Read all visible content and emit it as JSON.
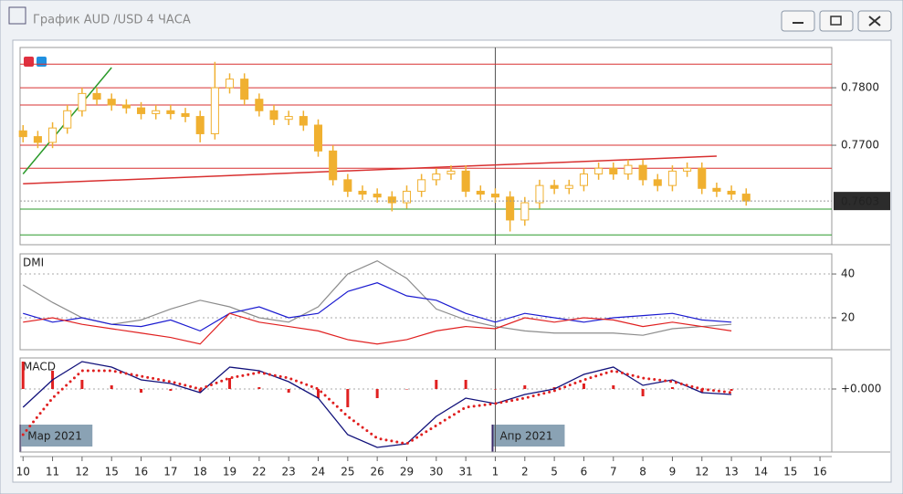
{
  "window_title": "График AUD /USD  4 ЧАСА",
  "chart_data": [
    {
      "type": "candlestick",
      "x": [
        0,
        0.5,
        1,
        1.5,
        2,
        2.5,
        3,
        3.5,
        4,
        4.5,
        5,
        5.5,
        6,
        6.5,
        7,
        7.5,
        8,
        8.5,
        9,
        9.5,
        10,
        10.5,
        11,
        11.5,
        12,
        12.5,
        13,
        13.5,
        14,
        14.5,
        15,
        15.5,
        16,
        16.5,
        17,
        17.5,
        18,
        18.5,
        19,
        19.5,
        20,
        20.5,
        21,
        21.5,
        22,
        22.5,
        23,
        23.5,
        24,
        24.5
      ],
      "open": [
        0.7725,
        0.7715,
        0.7705,
        0.773,
        0.776,
        0.779,
        0.778,
        0.777,
        0.7765,
        0.7755,
        0.776,
        0.7755,
        0.775,
        0.772,
        0.78,
        0.7815,
        0.778,
        0.776,
        0.7745,
        0.775,
        0.7735,
        0.769,
        0.764,
        0.762,
        0.7615,
        0.761,
        0.76,
        0.762,
        0.764,
        0.765,
        0.7655,
        0.762,
        0.7615,
        0.761,
        0.757,
        0.76,
        0.763,
        0.7625,
        0.763,
        0.765,
        0.766,
        0.765,
        0.7665,
        0.764,
        0.763,
        0.7655,
        0.766,
        0.7625,
        0.762,
        0.7615
      ],
      "high": [
        0.7735,
        0.7725,
        0.774,
        0.777,
        0.78,
        0.78,
        0.779,
        0.778,
        0.7775,
        0.777,
        0.777,
        0.7765,
        0.776,
        0.7845,
        0.7825,
        0.7825,
        0.779,
        0.777,
        0.776,
        0.776,
        0.7745,
        0.77,
        0.765,
        0.763,
        0.7625,
        0.762,
        0.763,
        0.765,
        0.766,
        0.7665,
        0.7665,
        0.763,
        0.7625,
        0.762,
        0.761,
        0.764,
        0.764,
        0.764,
        0.766,
        0.767,
        0.767,
        0.7675,
        0.7675,
        0.765,
        0.7665,
        0.767,
        0.767,
        0.7635,
        0.763,
        0.7625
      ],
      "low": [
        0.7705,
        0.7695,
        0.7695,
        0.772,
        0.775,
        0.777,
        0.776,
        0.7755,
        0.7745,
        0.7745,
        0.7745,
        0.774,
        0.7705,
        0.771,
        0.779,
        0.777,
        0.775,
        0.7735,
        0.7735,
        0.7725,
        0.768,
        0.763,
        0.761,
        0.7605,
        0.76,
        0.7585,
        0.759,
        0.761,
        0.763,
        0.764,
        0.761,
        0.7605,
        0.76,
        0.755,
        0.756,
        0.759,
        0.7615,
        0.7615,
        0.762,
        0.764,
        0.764,
        0.764,
        0.763,
        0.762,
        0.762,
        0.7645,
        0.7615,
        0.761,
        0.7605,
        0.7595
      ],
      "close": [
        0.7715,
        0.7705,
        0.773,
        0.776,
        0.779,
        0.778,
        0.777,
        0.7765,
        0.7755,
        0.776,
        0.7755,
        0.775,
        0.772,
        0.78,
        0.7815,
        0.778,
        0.776,
        0.7745,
        0.775,
        0.7735,
        0.769,
        0.764,
        0.762,
        0.7615,
        0.761,
        0.76,
        0.762,
        0.764,
        0.765,
        0.7655,
        0.762,
        0.7615,
        0.761,
        0.757,
        0.76,
        0.763,
        0.7625,
        0.763,
        0.765,
        0.766,
        0.765,
        0.7665,
        0.764,
        0.763,
        0.7655,
        0.766,
        0.7625,
        0.762,
        0.7615,
        0.7603
      ],
      "color": "#f0b030",
      "last_price": 0.7603,
      "hlines": [
        {
          "value": 0.7841,
          "color": "#d83030"
        },
        {
          "value": 0.78,
          "color": "#d83030"
        },
        {
          "value": 0.777,
          "color": "#d83030"
        },
        {
          "value": 0.77,
          "color": "#d83030"
        },
        {
          "value": 0.766,
          "color": "#d83030"
        },
        {
          "value": 0.7589,
          "color": "#2a9a2a"
        },
        {
          "value": 0.7544,
          "color": "#2a9a2a"
        }
      ],
      "trendlines": [
        {
          "x": [
            0,
            3
          ],
          "y": [
            0.765,
            0.7835
          ],
          "color": "#2a9a2a"
        },
        {
          "x": [
            0,
            23.5
          ],
          "y": [
            0.7633,
            0.7681
          ],
          "color": "#d83030"
        }
      ],
      "xlim": [
        -0.1,
        27.4
      ],
      "ylim": [
        0.7527,
        0.787
      ],
      "yticks": [
        {
          "value": 0.77,
          "label": "0.7700"
        },
        {
          "value": 0.78,
          "label": "0.7800"
        }
      ],
      "xticks": [
        {
          "value": 0,
          "label": "10"
        },
        {
          "value": 1,
          "label": "11"
        },
        {
          "value": 2,
          "label": "12"
        },
        {
          "value": 3,
          "label": "15"
        },
        {
          "value": 4,
          "label": "16"
        },
        {
          "value": 5,
          "label": "17"
        },
        {
          "value": 6,
          "label": "18"
        },
        {
          "value": 7,
          "label": "19"
        },
        {
          "value": 8,
          "label": "22"
        },
        {
          "value": 9,
          "label": "23"
        },
        {
          "value": 10,
          "label": "24"
        },
        {
          "value": 11,
          "label": "25"
        },
        {
          "value": 12,
          "label": "26"
        },
        {
          "value": 13,
          "label": "29"
        },
        {
          "value": 14,
          "label": "30"
        },
        {
          "value": 15,
          "label": "31"
        },
        {
          "value": 16,
          "label": "1"
        },
        {
          "value": 17,
          "label": "2"
        },
        {
          "value": 18,
          "label": "5"
        },
        {
          "value": 19,
          "label": "6"
        },
        {
          "value": 20,
          "label": "7"
        },
        {
          "value": 21,
          "label": "8"
        },
        {
          "value": 22,
          "label": "9"
        },
        {
          "value": 23,
          "label": "12"
        },
        {
          "value": 24,
          "label": "13"
        },
        {
          "value": 25,
          "label": "14"
        },
        {
          "value": 26,
          "label": "15"
        },
        {
          "value": 27,
          "label": "16"
        }
      ],
      "period_markers": [
        {
          "x": 0,
          "label": "Мар 2021"
        },
        {
          "x": 16,
          "label": "Апр 2021"
        }
      ]
    },
    {
      "type": "line",
      "title": "DMI",
      "x": [
        0,
        1,
        2,
        3,
        4,
        5,
        6,
        7,
        8,
        9,
        10,
        11,
        12,
        13,
        14,
        15,
        16,
        17,
        18,
        19,
        20,
        21,
        22,
        23,
        24
      ],
      "series": [
        {
          "color": "#8c8c8c",
          "values": [
            35,
            27,
            20,
            17,
            19,
            24,
            28,
            25,
            20,
            18,
            25,
            40,
            46,
            38,
            24,
            19,
            16,
            14,
            13,
            13,
            13,
            12,
            15,
            16,
            17
          ]
        },
        {
          "color": "#1a1ad0",
          "values": [
            22,
            18,
            20,
            17,
            16,
            19,
            14,
            22,
            25,
            20,
            22,
            32,
            36,
            30,
            28,
            22,
            18,
            22,
            20,
            18,
            20,
            21,
            22,
            19,
            18
          ]
        },
        {
          "color": "#e02020",
          "values": [
            18,
            20,
            17,
            15,
            13,
            11,
            8,
            22,
            18,
            16,
            14,
            10,
            8,
            10,
            14,
            16,
            15,
            20,
            18,
            20,
            19,
            16,
            18,
            16,
            14
          ]
        }
      ],
      "xlim": [
        -0.1,
        27.4
      ],
      "ylim": [
        5.4,
        49.2
      ],
      "yticks": [
        20,
        40
      ],
      "grid": true
    },
    {
      "type": "macd",
      "title": "MACD",
      "x": [
        0,
        1,
        2,
        3,
        4,
        5,
        6,
        7,
        8,
        9,
        10,
        11,
        12,
        13,
        14,
        15,
        16,
        17,
        18,
        19,
        20,
        21,
        22,
        23,
        24
      ],
      "series": [
        {
          "style": "histogram",
          "color": "#e02020",
          "values": [
            0.0015,
            0.001,
            0.0005,
            0.0002,
            -0.0002,
            -0.0001,
            -0.0002,
            0.0006,
            0.0001,
            -0.0002,
            -0.0005,
            -0.001,
            -0.0005,
            0.0,
            0.0005,
            0.0005,
            0.0,
            0.0002,
            0.0001,
            0.0003,
            0.0002,
            -0.0004,
            0.0001,
            -0.0002,
            -0.0001
          ]
        },
        {
          "style": "line",
          "color": "#10107a",
          "values": [
            -0.001,
            0.0005,
            0.0015,
            0.0012,
            0.0005,
            0.0003,
            -0.0002,
            0.0012,
            0.001,
            0.0004,
            -0.0005,
            -0.0025,
            -0.0032,
            -0.003,
            -0.0015,
            -0.0005,
            -0.0008,
            -0.0003,
            0.0,
            0.0008,
            0.0012,
            0.0002,
            0.0005,
            -0.0002,
            -0.0003
          ]
        },
        {
          "style": "dotted",
          "color": "#e02020",
          "values": [
            -0.0025,
            -0.0005,
            0.001,
            0.001,
            0.0007,
            0.0004,
            0.0,
            0.0006,
            0.0009,
            0.0006,
            0.0,
            -0.0015,
            -0.0027,
            -0.003,
            -0.002,
            -0.001,
            -0.0008,
            -0.0005,
            -0.0001,
            0.0005,
            0.001,
            0.0006,
            0.0004,
            0.0,
            -0.0002
          ]
        }
      ],
      "xlim": [
        -0.1,
        27.4
      ],
      "ylim": [
        -0.00345,
        0.0017
      ],
      "yticks": [
        {
          "value": 0,
          "label": "+0.000"
        }
      ],
      "grid": true
    }
  ]
}
